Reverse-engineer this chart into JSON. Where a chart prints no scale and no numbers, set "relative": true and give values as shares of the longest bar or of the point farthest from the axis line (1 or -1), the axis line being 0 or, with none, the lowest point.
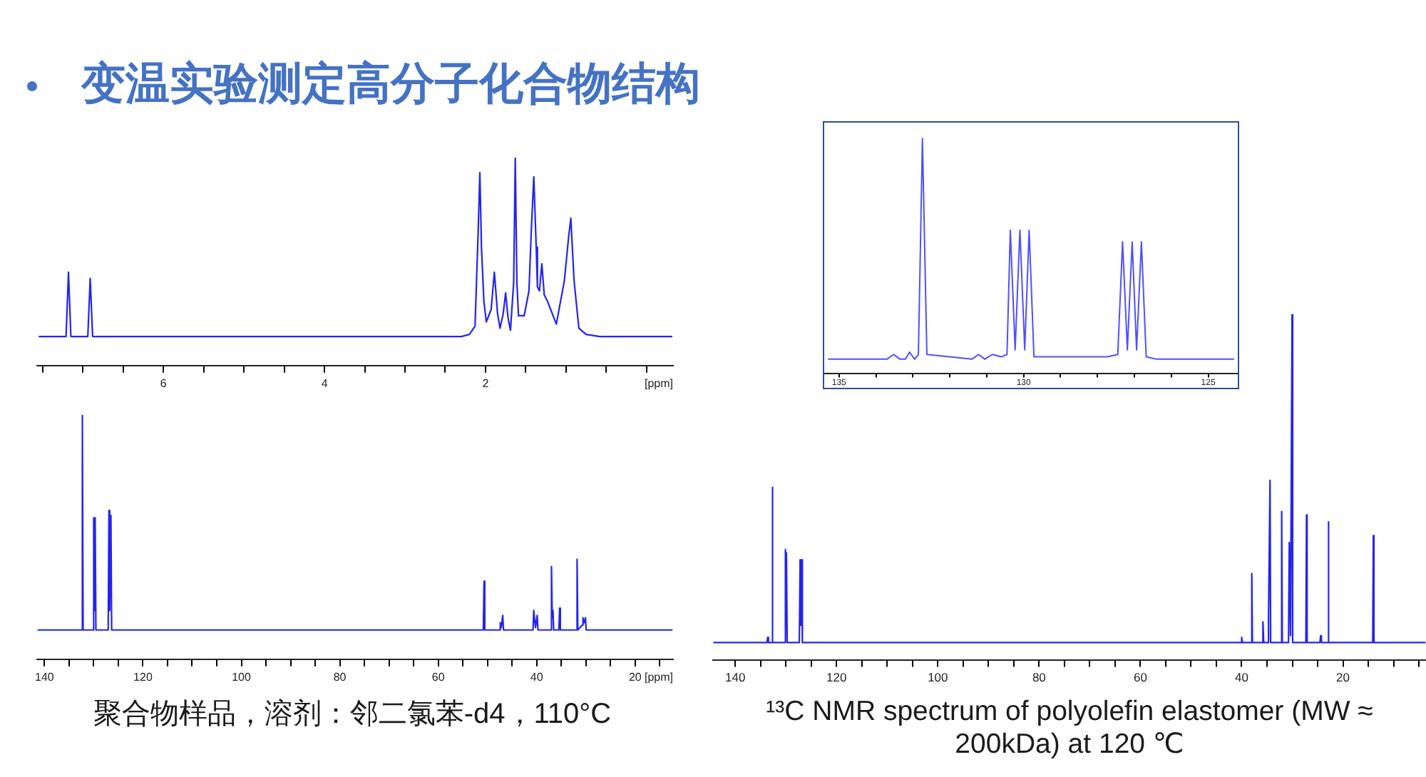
{
  "chart_data": [
    {
      "type": "line",
      "title": "变温实验测定高分子化合物结构",
      "xlabel": "[ppm]",
      "relative": true,
      "color": "#2424f0",
      "xlim": [
        7.57,
        -0.33
      ],
      "xticks": [
        {
          "value": 7.5,
          "label": null
        },
        {
          "value": 7,
          "label": null
        },
        {
          "value": 6.5,
          "label": null
        },
        6,
        {
          "value": 5.5,
          "label": null
        },
        {
          "value": 5,
          "label": null
        },
        {
          "value": 4.5,
          "label": null
        },
        4,
        {
          "value": 3.5,
          "label": null
        },
        {
          "value": 3,
          "label": null
        },
        {
          "value": 2.5,
          "label": null
        },
        2,
        {
          "value": 1.5,
          "label": null
        },
        {
          "value": 1,
          "label": null
        },
        {
          "value": 0.5,
          "label": null
        },
        {
          "value": 0,
          "label": null
        }
      ],
      "x": [
        7.55,
        7.21,
        7.18,
        7.15,
        6.94,
        6.91,
        6.88,
        2.3,
        2.2,
        2.13,
        2.09,
        2.07,
        2.05,
        2.02,
        1.99,
        1.93,
        1.89,
        1.85,
        1.82,
        1.78,
        1.75,
        1.72,
        1.69,
        1.65,
        1.63,
        1.61,
        1.59,
        1.52,
        1.46,
        1.43,
        1.4,
        1.37,
        1.355,
        1.33,
        1.3,
        1.27,
        1.23,
        1.12,
        1.02,
        0.97,
        0.94,
        0.9,
        0.84,
        0.75,
        0.58,
        -0.32
      ],
      "values": [
        0.14,
        0.14,
        0.45,
        0.14,
        0.14,
        0.42,
        0.14,
        0.14,
        0.15,
        0.19,
        0.66,
        0.93,
        0.57,
        0.31,
        0.21,
        0.27,
        0.45,
        0.25,
        0.18,
        0.25,
        0.35,
        0.23,
        0.17,
        0.4,
        1,
        0.4,
        0.24,
        0.24,
        0.36,
        0.66,
        0.91,
        0.57,
        0.38,
        0.36,
        0.49,
        0.34,
        0.31,
        0.2,
        0.41,
        0.61,
        0.71,
        0.41,
        0.18,
        0.15,
        0.14,
        0.14
      ]
    },
    {
      "type": "line",
      "relative": true,
      "color": "#5050ff",
      "xlim": [
        135.4,
        124.2
      ],
      "xticks": [
        135,
        {
          "value": 134,
          "label": null
        },
        {
          "value": 133,
          "label": null
        },
        {
          "value": 132,
          "label": null
        },
        {
          "value": 131,
          "label": null
        },
        130,
        {
          "value": 129,
          "label": null
        },
        {
          "value": 128,
          "label": null
        },
        {
          "value": 127,
          "label": null
        },
        {
          "value": 126,
          "label": null
        },
        125
      ],
      "x": [
        135.3,
        133.7,
        133.52,
        133.35,
        133.2,
        133.09,
        132.95,
        132.85,
        132.74,
        132.62,
        131.4,
        131.22,
        131.05,
        130.85,
        130.6,
        130.45,
        130.36,
        130.23,
        130.1,
        129.97,
        129.85,
        129.72,
        127.73,
        127.45,
        127.32,
        127.19,
        127.06,
        126.94,
        126.81,
        126.68,
        126.4,
        124.3
      ],
      "values": [
        0.06,
        0.06,
        0.08,
        0.06,
        0.06,
        0.09,
        0.06,
        0.08,
        1,
        0.08,
        0.06,
        0.08,
        0.06,
        0.08,
        0.07,
        0.08,
        0.61,
        0.1,
        0.61,
        0.1,
        0.61,
        0.07,
        0.07,
        0.08,
        0.56,
        0.1,
        0.56,
        0.1,
        0.56,
        0.07,
        0.06,
        0.06
      ]
    },
    {
      "type": "line",
      "xlabel": "[ppm]",
      "relative": true,
      "color": "#2424f0",
      "xlim": [
        141.5,
        12.3
      ],
      "xticks": [
        140,
        {
          "value": 135,
          "label": null
        },
        {
          "value": 130,
          "label": null
        },
        {
          "value": 125,
          "label": null
        },
        120,
        {
          "value": 115,
          "label": null
        },
        {
          "value": 110,
          "label": null
        },
        {
          "value": 105,
          "label": null
        },
        100,
        {
          "value": 95,
          "label": null
        },
        {
          "value": 90,
          "label": null
        },
        {
          "value": 85,
          "label": null
        },
        80,
        {
          "value": 75,
          "label": null
        },
        {
          "value": 70,
          "label": null
        },
        {
          "value": 65,
          "label": null
        },
        60,
        {
          "value": 55,
          "label": null
        },
        {
          "value": 50,
          "label": null
        },
        {
          "value": 45,
          "label": null
        },
        40,
        {
          "value": 35,
          "label": null
        },
        {
          "value": 30,
          "label": null
        },
        {
          "value": 25,
          "label": null
        },
        20,
        {
          "value": 15,
          "label": null
        }
      ],
      "x": [
        141.4,
        132.45,
        132.3,
        132.15,
        130.15,
        130,
        129.85,
        129.7,
        129.55,
        127.05,
        126.9,
        126.75,
        126.5,
        126.35,
        50.85,
        50.7,
        50.55,
        47.55,
        47.4,
        47.2,
        46.9,
        46.75,
        40.75,
        40.6,
        40.25,
        39.9,
        39.75,
        37.15,
        37,
        36.85,
        36.7,
        36.55,
        35.5,
        35.35,
        35.2,
        31.95,
        31.8,
        31.65,
        30.75,
        30.6,
        30.35,
        30.1,
        29.95,
        12.4
      ],
      "values": [
        0.12,
        0.12,
        1,
        0.12,
        0.12,
        0.58,
        0.2,
        0.58,
        0.12,
        0.12,
        0.61,
        0.2,
        0.59,
        0.12,
        0.12,
        0.32,
        0.12,
        0.12,
        0.15,
        0.13,
        0.18,
        0.12,
        0.12,
        0.2,
        0.13,
        0.18,
        0.12,
        0.12,
        0.38,
        0.17,
        0.2,
        0.12,
        0.12,
        0.21,
        0.12,
        0.12,
        0.41,
        0.12,
        0.14,
        0.17,
        0.15,
        0.17,
        0.12,
        0.12
      ],
      "annotations": [
        "聚合物样品，溶剂：邻二氯苯-d4，110°C"
      ]
    },
    {
      "type": "line",
      "relative": true,
      "color": "#2424f0",
      "xlim": [
        144.4,
        3.6
      ],
      "xticks": [
        140,
        {
          "value": 135,
          "label": null
        },
        {
          "value": 130,
          "label": null
        },
        {
          "value": 125,
          "label": null
        },
        120,
        {
          "value": 115,
          "label": null
        },
        {
          "value": 110,
          "label": null
        },
        {
          "value": 105,
          "label": null
        },
        100,
        {
          "value": 95,
          "label": null
        },
        {
          "value": 90,
          "label": null
        },
        {
          "value": 85,
          "label": null
        },
        80,
        {
          "value": 75,
          "label": null
        },
        {
          "value": 70,
          "label": null
        },
        {
          "value": 65,
          "label": null
        },
        60,
        {
          "value": 55,
          "label": null
        },
        {
          "value": 50,
          "label": null
        },
        {
          "value": 45,
          "label": null
        },
        40,
        {
          "value": 35,
          "label": null
        },
        {
          "value": 30,
          "label": null
        },
        {
          "value": 25,
          "label": null
        },
        20,
        {
          "value": 15,
          "label": null
        },
        {
          "value": 10,
          "label": null
        },
        {
          "value": 5,
          "label": null
        }
      ],
      "x": [
        144.3,
        133.75,
        133.6,
        133.45,
        132.82,
        132.7,
        132.58,
        130.25,
        130.1,
        130,
        129.9,
        129.75,
        127.35,
        127.2,
        127.05,
        126.9,
        126.75,
        40.15,
        40,
        39.85,
        38.12,
        38,
        37.88,
        35.95,
        35.8,
        35.65,
        34.85,
        34.7,
        34.4,
        34.28,
        32.22,
        32.1,
        31.98,
        30.75,
        30.6,
        30.35,
        30.05,
        29.93,
        27.32,
        27.2,
        27.08,
        24.55,
        24.4,
        24.25,
        23.02,
        22.9,
        22.78,
        14.12,
        14,
        13.88,
        3.7
      ],
      "values": [
        0.05,
        0.05,
        0.065,
        0.05,
        0.05,
        0.5,
        0.05,
        0.05,
        0.32,
        0.1,
        0.31,
        0.05,
        0.05,
        0.29,
        0.1,
        0.29,
        0.05,
        0.05,
        0.065,
        0.05,
        0.05,
        0.25,
        0.05,
        0.05,
        0.11,
        0.05,
        0.05,
        0.12,
        0.52,
        0.05,
        0.05,
        0.43,
        0.05,
        0.05,
        0.34,
        0.07,
        1,
        0.05,
        0.05,
        0.42,
        0.05,
        0.05,
        0.07,
        0.05,
        0.05,
        0.4,
        0.05,
        0.05,
        0.36,
        0.05,
        0.05
      ],
      "annotations": [
        "¹³C NMR spectrum of polyolefin elastomer (MW ≈ 200kDa) at 120 ℃"
      ]
    }
  ]
}
